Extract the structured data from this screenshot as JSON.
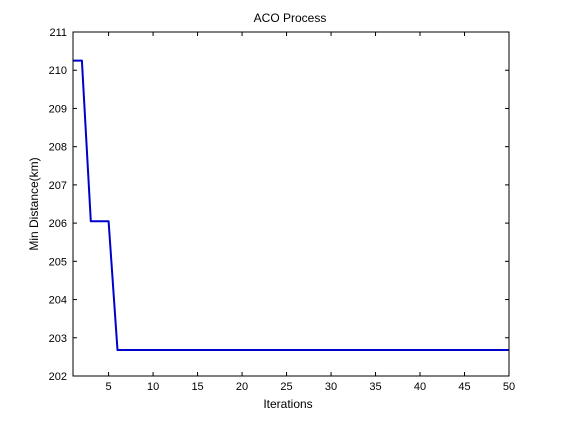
{
  "chart_data": {
    "type": "line",
    "title": "ACO Process",
    "xlabel": "Iterations",
    "ylabel": "Min Distance(km)",
    "xlim": [
      1,
      50
    ],
    "ylim": [
      202,
      211
    ],
    "xticks": [
      5,
      10,
      15,
      20,
      25,
      30,
      35,
      40,
      45,
      50
    ],
    "yticks": [
      202,
      203,
      204,
      205,
      206,
      207,
      208,
      209,
      210,
      211
    ],
    "grid": false,
    "series": [
      {
        "color": "#0000cc",
        "x": [
          1,
          2,
          3,
          4,
          5,
          6,
          7,
          8,
          9,
          10,
          11,
          12,
          13,
          14,
          15,
          16,
          17,
          18,
          19,
          20,
          21,
          22,
          23,
          24,
          25,
          26,
          27,
          28,
          29,
          30,
          31,
          32,
          33,
          34,
          35,
          36,
          37,
          38,
          39,
          40,
          41,
          42,
          43,
          44,
          45,
          46,
          47,
          48,
          49,
          50
        ],
        "y": [
          210.25,
          210.25,
          206.05,
          206.05,
          206.05,
          202.68,
          202.68,
          202.68,
          202.68,
          202.68,
          202.68,
          202.68,
          202.68,
          202.68,
          202.68,
          202.68,
          202.68,
          202.68,
          202.68,
          202.68,
          202.68,
          202.68,
          202.68,
          202.68,
          202.68,
          202.68,
          202.68,
          202.68,
          202.68,
          202.68,
          202.68,
          202.68,
          202.68,
          202.68,
          202.68,
          202.68,
          202.68,
          202.68,
          202.68,
          202.68,
          202.68,
          202.68,
          202.68,
          202.68,
          202.68,
          202.68,
          202.68,
          202.68,
          202.68,
          202.68
        ]
      }
    ]
  }
}
